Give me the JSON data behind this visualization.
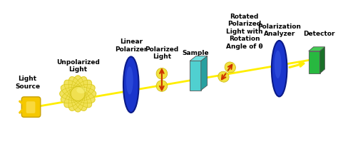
{
  "bg_color": "#ffffff",
  "fig_w": 4.74,
  "fig_h": 2.09,
  "dpi": 100,
  "beam_color": "#ffee00",
  "beam_lw": 2.0,
  "light_body_color": "#f5c800",
  "light_body_edge": "#c8a000",
  "unpol_color": "#f0e050",
  "unpol_edge": "#c8b800",
  "polarizer_color": "#1a35cc",
  "polarizer_edge": "#0a1a88",
  "polarizer_hi": "#4466ee",
  "pol_light_color": "#f0e030",
  "sample_front": "#50d0d0",
  "sample_side": "#28a0a0",
  "sample_top": "#70e0e0",
  "rot_light_color": "#f0e030",
  "analyzer_color": "#1a35cc",
  "analyzer_edge": "#0a1a88",
  "analyzer_hi": "#4466ee",
  "detector_front": "#28b840",
  "detector_side": "#1a7028",
  "detector_top": "#44cc55",
  "arrow_color": "#cc3300",
  "yellow_arrow_color": "#ffee00",
  "label_color": "#000000",
  "label_fs": 6.5,
  "label_fw": "bold",
  "labels": {
    "light_source": "Light\nSource",
    "unpolarized": "Unpolarized\nLight",
    "linear_polarizer": "Linear\nPolarizer",
    "polarized_light": "Polarized\nLight",
    "sample": "Sample",
    "rotated": "Rotated\nPolarized\nLight with\nRotation\nAngle of θ",
    "analyzer": "Polarization\nAnalyzer",
    "detector": "Detector"
  }
}
